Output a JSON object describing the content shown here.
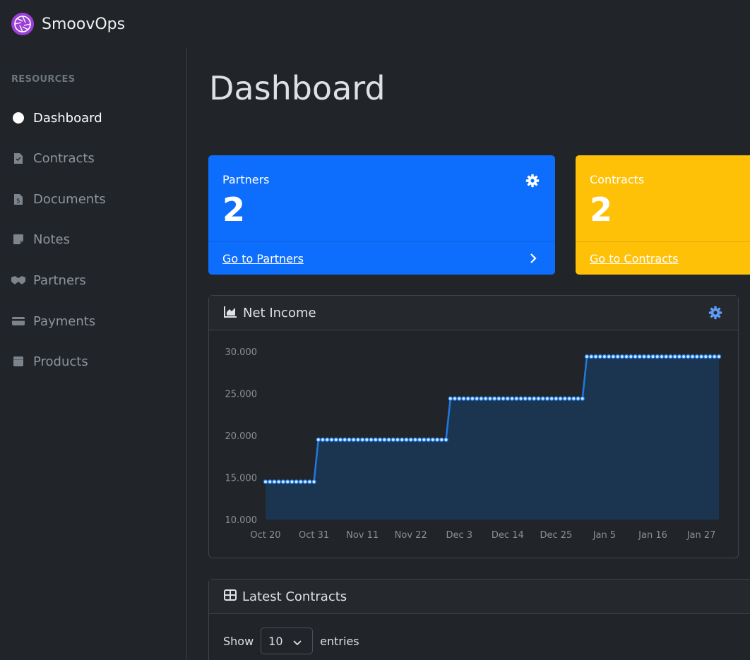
{
  "app": {
    "name": "SmoovOps"
  },
  "sidebar": {
    "heading": "RESOURCES",
    "items": [
      {
        "label": "Dashboard",
        "icon": "dashboard-icon",
        "active": true
      },
      {
        "label": "Contracts",
        "icon": "contract-file-icon"
      },
      {
        "label": "Documents",
        "icon": "invoice-file-icon"
      },
      {
        "label": "Notes",
        "icon": "sticky-note-icon"
      },
      {
        "label": "Partners",
        "icon": "handshake-icon"
      },
      {
        "label": "Payments",
        "icon": "credit-card-icon"
      },
      {
        "label": "Products",
        "icon": "box-icon"
      }
    ]
  },
  "page": {
    "title": "Dashboard"
  },
  "stats": {
    "partners": {
      "label": "Partners",
      "value": "2",
      "link": "Go to Partners",
      "color": "#0d6efd"
    },
    "contracts": {
      "label": "Contracts",
      "value": "2",
      "link": "Go to Contracts",
      "color": "#ffc107"
    }
  },
  "net_income": {
    "title": "Net Income"
  },
  "chart_data": {
    "type": "area",
    "title": "",
    "xlabel": "",
    "ylabel": "",
    "x_ticks": [
      "Oct 20",
      "Oct 31",
      "Nov 11",
      "Nov 22",
      "Dec 3",
      "Dec 14",
      "Dec 25",
      "Jan 5",
      "Jan 16",
      "Jan 27"
    ],
    "y_ticks": [
      "10.000",
      "15.000",
      "20.000",
      "25.000",
      "30.000"
    ],
    "ylim": [
      10000,
      30000
    ],
    "xlim": [
      "2023-10-20",
      "2024-01-31"
    ],
    "series": [
      {
        "step_segments": [
          {
            "from": "2023-10-20",
            "to": "2023-10-31",
            "value": 14500
          },
          {
            "from": "2023-11-01",
            "to": "2023-11-30",
            "value": 19500
          },
          {
            "from": "2023-12-01",
            "to": "2023-12-31",
            "value": 24400
          },
          {
            "from": "2024-01-01",
            "to": "2024-01-31",
            "value": 29400
          }
        ]
      }
    ],
    "line_color": "#1e7ae0",
    "fill_color": "#1b3550",
    "grid": false
  },
  "latest_contracts": {
    "title": "Latest Contracts",
    "show_label": "Show",
    "entries_label": "entries",
    "page_size": "10"
  }
}
